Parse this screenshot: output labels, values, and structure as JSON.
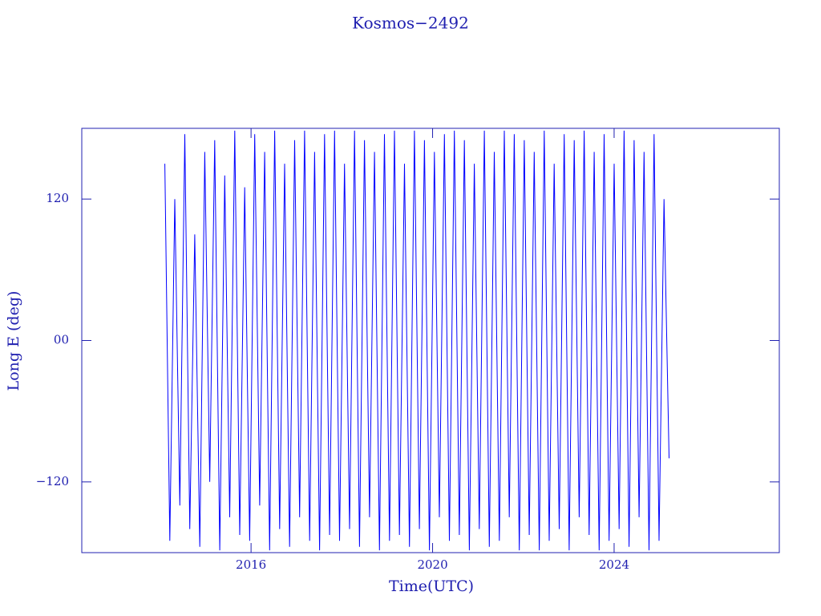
{
  "chart_data": {
    "type": "line",
    "title": "Kosmos−2492",
    "xlabel": "Time(UTC)",
    "ylabel": "Long E (deg)",
    "xlim": [
      2012.27,
      2027.64
    ],
    "xticks": [
      2016,
      2020,
      2024
    ],
    "ylim": [
      -180,
      180
    ],
    "yticks": [
      {
        "value": -120,
        "label": "−120"
      },
      {
        "value": 0,
        "label": "00"
      },
      120
    ],
    "x": [
      2014.1,
      2014.21,
      2014.32,
      2014.43,
      2014.54,
      2014.65,
      2014.76,
      2014.87,
      2014.98,
      2015.09,
      2015.2,
      2015.31,
      2015.42,
      2015.53,
      2015.64,
      2015.75,
      2015.86,
      2015.97,
      2016.08,
      2016.19,
      2016.3,
      2016.41,
      2016.52,
      2016.63,
      2016.74,
      2016.85,
      2016.96,
      2017.07,
      2017.18,
      2017.29,
      2017.4,
      2017.51,
      2017.62,
      2017.73,
      2017.84,
      2017.95,
      2018.06,
      2018.17,
      2018.28,
      2018.39,
      2018.5,
      2018.61,
      2018.72,
      2018.83,
      2018.94,
      2019.05,
      2019.16,
      2019.27,
      2019.38,
      2019.49,
      2019.6,
      2019.71,
      2019.82,
      2019.93,
      2020.04,
      2020.15,
      2020.26,
      2020.37,
      2020.48,
      2020.59,
      2020.7,
      2020.81,
      2020.92,
      2021.03,
      2021.14,
      2021.25,
      2021.36,
      2021.47,
      2021.58,
      2021.69,
      2021.8,
      2021.91,
      2022.02,
      2022.13,
      2022.24,
      2022.35,
      2022.46,
      2022.57,
      2022.68,
      2022.79,
      2022.9,
      2023.01,
      2023.12,
      2023.23,
      2023.34,
      2023.45,
      2023.56,
      2023.67,
      2023.78,
      2023.89,
      2024.0,
      2024.11,
      2024.22,
      2024.33,
      2024.44,
      2024.55,
      2024.66,
      2024.77,
      2024.88,
      2024.99,
      2025.1,
      2025.21
    ],
    "series": [
      {
        "color": "#0000ff",
        "values": [
          150,
          -170,
          120,
          -140,
          175,
          -160,
          90,
          -175,
          160,
          -120,
          170,
          -178,
          140,
          -150,
          178,
          -165,
          130,
          -170,
          175,
          -140,
          160,
          -178,
          178,
          -160,
          150,
          -175,
          170,
          -150,
          178,
          -170,
          160,
          -178,
          175,
          -165,
          178,
          -170,
          150,
          -160,
          178,
          -175,
          170,
          -150,
          160,
          -178,
          175,
          -170,
          178,
          -165,
          150,
          -175,
          178,
          -160,
          170,
          -178,
          160,
          -150,
          175,
          -170,
          178,
          -165,
          170,
          -178,
          150,
          -160,
          178,
          -175,
          160,
          -170,
          178,
          -150,
          175,
          -178,
          170,
          -165,
          160,
          -178,
          178,
          -170,
          150,
          -160,
          175,
          -178,
          170,
          -150,
          178,
          -165,
          160,
          -178,
          175,
          -170,
          150,
          -160,
          178,
          -175,
          170,
          -150,
          160,
          -178,
          175,
          -170,
          120,
          -100
        ]
      }
    ]
  }
}
